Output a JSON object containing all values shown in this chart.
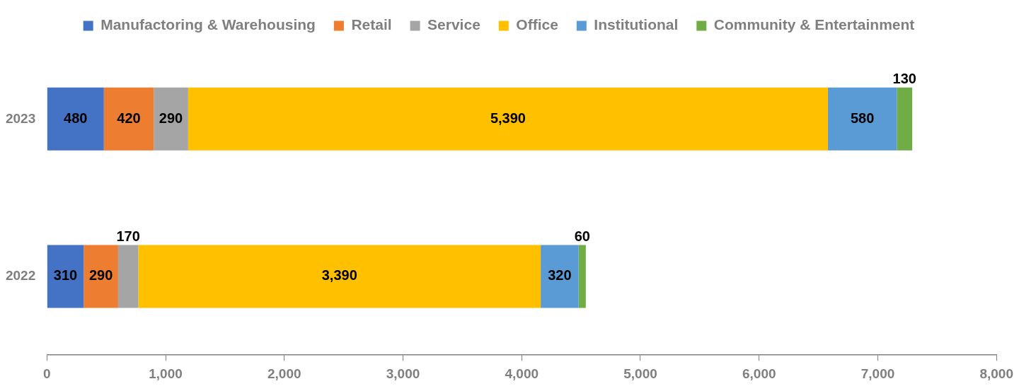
{
  "chart_data": {
    "type": "bar",
    "orientation": "horizontal",
    "stacked": true,
    "categories": [
      "2023",
      "2022"
    ],
    "series": [
      {
        "name": "Manufactoring & Warehousing",
        "color": "#4472c4",
        "values": [
          480,
          310
        ],
        "value_labels": [
          "480",
          "310"
        ]
      },
      {
        "name": "Retail",
        "color": "#ed7d31",
        "values": [
          420,
          290
        ],
        "value_labels": [
          "420",
          "290"
        ]
      },
      {
        "name": "Service",
        "color": "#a5a5a5",
        "values": [
          290,
          170
        ],
        "value_labels": [
          "290",
          "170"
        ]
      },
      {
        "name": "Office",
        "color": "#ffc000",
        "values": [
          5390,
          3390
        ],
        "value_labels": [
          "5,390",
          "3,390"
        ]
      },
      {
        "name": "Institutional",
        "color": "#5b9bd5",
        "values": [
          580,
          320
        ],
        "value_labels": [
          "580",
          "320"
        ]
      },
      {
        "name": "Community & Entertainment",
        "color": "#70ad47",
        "values": [
          130,
          60
        ],
        "value_labels": [
          "130",
          "60"
        ]
      }
    ],
    "xlim": [
      0,
      8000
    ],
    "xticks": [
      {
        "value": 0,
        "label": "0"
      },
      {
        "value": 1000,
        "label": "1,000"
      },
      {
        "value": 2000,
        "label": "2,000"
      },
      {
        "value": 3000,
        "label": "3,000"
      },
      {
        "value": 4000,
        "label": "4,000"
      },
      {
        "value": 5000,
        "label": "5,000"
      },
      {
        "value": 6000,
        "label": "6,000"
      },
      {
        "value": 7000,
        "label": "7,000"
      },
      {
        "value": 8000,
        "label": "8,000"
      }
    ],
    "grid": false,
    "legend": "top"
  }
}
